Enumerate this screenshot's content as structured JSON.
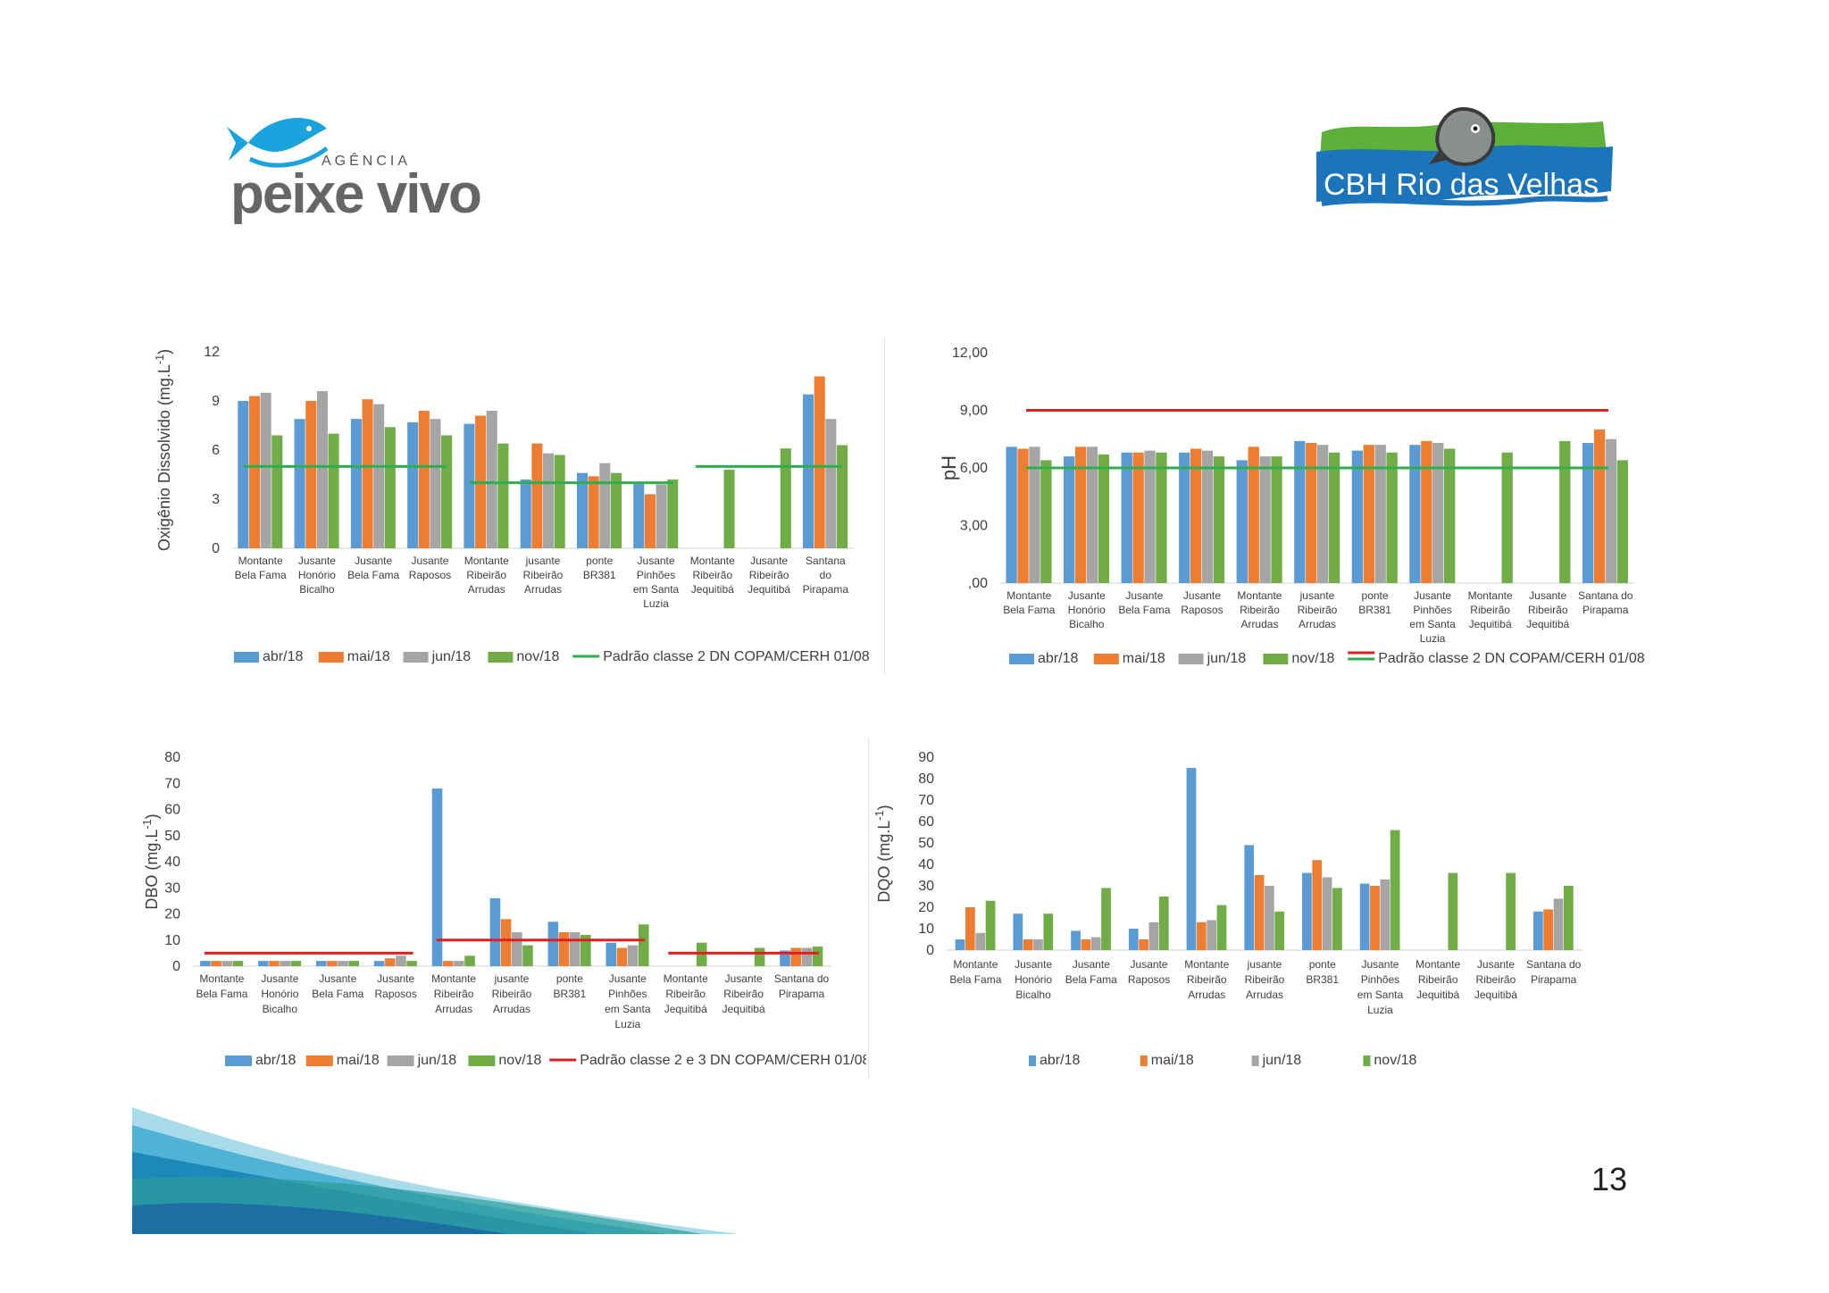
{
  "logos": {
    "left": {
      "small_text": "AGÊNCIA",
      "main_text": "peixe vivo"
    },
    "right": {
      "text": "CBH Rio das Velhas"
    }
  },
  "page_number": "13",
  "colors": {
    "abr": "#5B9BD5",
    "mai": "#ED7D31",
    "jun": "#A5A5A5",
    "nov": "#70AD47",
    "green_line": "#2EAE4E",
    "red_line": "#E02020"
  },
  "chart_data": [
    {
      "id": "od",
      "type": "bar",
      "ylabel": "Oxigênio Dissolvido (mg.L-1)",
      "ytick_labels": [
        "0",
        "3",
        "6",
        "9",
        "12"
      ],
      "ylim": [
        0,
        12
      ],
      "categories": [
        "Montante\nBela Fama",
        "Jusante\nHonório\nBicalho",
        "Jusante\nBela Fama",
        "Jusante\nRaposos",
        "Montante\nRibeirão\nArrudas",
        "jusante\nRibeirão\nArrudas",
        "ponte\nBR381",
        "Jusante\nPinhões\nem Santa\nLuzia",
        "Montante\nRibeirão\nJequitibá",
        "Jusante\nRibeirão\nJequitibá",
        "Santana\ndo\nPirapama"
      ],
      "series": [
        {
          "name": "abr/18",
          "values": [
            9.0,
            7.9,
            7.9,
            7.7,
            7.6,
            4.2,
            4.6,
            4.0,
            null,
            null,
            9.4
          ]
        },
        {
          "name": "mai/18",
          "values": [
            9.3,
            9.0,
            9.1,
            8.4,
            8.1,
            6.4,
            4.4,
            3.3,
            null,
            null,
            10.5
          ]
        },
        {
          "name": "jun/18",
          "values": [
            9.5,
            9.6,
            8.8,
            7.9,
            8.4,
            5.8,
            5.2,
            3.9,
            null,
            null,
            7.9
          ]
        },
        {
          "name": "nov/18",
          "values": [
            6.9,
            7.0,
            7.4,
            6.9,
            6.4,
            5.7,
            4.6,
            4.2,
            4.8,
            6.1,
            6.3
          ]
        }
      ],
      "standard": {
        "name": "Padrão classe 2 DN COPAM/CERH 01/08",
        "segments": [
          {
            "from": 0,
            "to": 3,
            "value": 5
          },
          {
            "from": 4,
            "to": 7,
            "value": 4
          },
          {
            "from": 8,
            "to": 10,
            "value": 5
          }
        ]
      }
    },
    {
      "id": "ph",
      "type": "bar",
      "ylabel": "pH",
      "ytick_labels": [
        ",00",
        "3,00",
        "6,00",
        "9,00",
        "12,00"
      ],
      "ylim": [
        0,
        12
      ],
      "categories": [
        "Montante\nBela Fama",
        "Jusante\nHonório\nBicalho",
        "Jusante\nBela Fama",
        "Jusante\nRaposos",
        "Montante\nRibeirão\nArrudas",
        "jusante\nRibeirão\nArrudas",
        "ponte\nBR381",
        "Jusante\nPinhões\nem Santa\nLuzia",
        "Montante\nRibeirão\nJequitibá",
        "Jusante\nRibeirão\nJequitibá",
        "Santana do\nPirapama"
      ],
      "series": [
        {
          "name": "abr/18",
          "values": [
            7.1,
            6.6,
            6.8,
            6.8,
            6.4,
            7.4,
            6.9,
            7.2,
            null,
            null,
            7.3
          ]
        },
        {
          "name": "mai/18",
          "values": [
            7.0,
            7.1,
            6.8,
            7.0,
            7.1,
            7.3,
            7.2,
            7.4,
            null,
            null,
            8.0
          ]
        },
        {
          "name": "jun/18",
          "values": [
            7.1,
            7.1,
            6.9,
            6.9,
            6.6,
            7.2,
            7.2,
            7.3,
            null,
            null,
            7.5
          ]
        },
        {
          "name": "nov/18",
          "values": [
            6.4,
            6.7,
            6.8,
            6.6,
            6.6,
            6.8,
            6.8,
            7.0,
            6.8,
            7.4,
            6.4
          ]
        }
      ],
      "standard": {
        "name": "Padrão classe 2 DN COPAM/CERH 01/08",
        "lines": [
          {
            "value": 9,
            "color": "red"
          },
          {
            "value": 6,
            "color": "green"
          }
        ]
      }
    },
    {
      "id": "dbo",
      "type": "bar",
      "ylabel": "DBO (mg.L-1)",
      "ytick_labels": [
        "0",
        "10",
        "20",
        "30",
        "40",
        "50",
        "60",
        "70",
        "80"
      ],
      "ylim": [
        0,
        80
      ],
      "categories": [
        "Montante\nBela Fama",
        "Jusante\nHonório\nBicalho",
        "Jusante\nBela Fama",
        "Jusante\nRaposos",
        "Montante\nRibeirão\nArrudas",
        "jusante\nRibeirão\nArrudas",
        "ponte\nBR381",
        "Jusante\nPinhões\nem Santa\nLuzia",
        "Montante\nRibeirão\nJequitibá",
        "Jusante\nRibeirão\nJequitibá",
        "Santana do\nPirapama"
      ],
      "series": [
        {
          "name": "abr/18",
          "values": [
            2,
            2,
            2,
            2,
            68,
            26,
            17,
            9,
            null,
            null,
            6
          ]
        },
        {
          "name": "mai/18",
          "values": [
            2,
            2,
            2,
            3,
            2,
            18,
            13,
            7,
            null,
            null,
            7
          ]
        },
        {
          "name": "jun/18",
          "values": [
            2,
            2,
            2,
            4,
            2,
            13,
            13,
            8,
            null,
            null,
            7
          ]
        },
        {
          "name": "nov/18",
          "values": [
            2,
            2,
            2,
            2,
            4,
            8,
            12,
            16,
            9,
            7,
            7.5
          ]
        }
      ],
      "standard": {
        "name": "Padrão classe 2 e 3 DN COPAM/CERH 01/08",
        "segments": [
          {
            "from": 0,
            "to": 3,
            "value": 5
          },
          {
            "from": 4,
            "to": 7,
            "value": 10
          },
          {
            "from": 8,
            "to": 10,
            "value": 5
          }
        ]
      }
    },
    {
      "id": "dqo",
      "type": "bar",
      "ylabel": "DQO (mg.L-1)",
      "ytick_labels": [
        "0",
        "10",
        "20",
        "30",
        "40",
        "50",
        "60",
        "70",
        "80",
        "90"
      ],
      "ylim": [
        0,
        90
      ],
      "categories": [
        "Montante\nBela Fama",
        "Jusante\nHonório\nBicalho",
        "Jusante\nBela Fama",
        "Jusante\nRaposos",
        "Montante\nRibeirão\nArrudas",
        "jusante\nRibeirão\nArrudas",
        "ponte\nBR381",
        "Jusante\nPinhões\nem Santa\nLuzia",
        "Montante\nRibeirão\nJequitibá",
        "Jusante\nRibeirão\nJequitibá",
        "Santana do\nPirapama"
      ],
      "series": [
        {
          "name": "abr/18",
          "values": [
            5,
            17,
            9,
            10,
            85,
            49,
            36,
            31,
            null,
            null,
            18
          ]
        },
        {
          "name": "mai/18",
          "values": [
            20,
            5,
            5,
            5,
            13,
            35,
            42,
            30,
            null,
            null,
            19
          ]
        },
        {
          "name": "jun/18",
          "values": [
            8,
            5,
            6,
            13,
            14,
            30,
            34,
            33,
            null,
            null,
            24
          ]
        },
        {
          "name": "nov/18",
          "values": [
            23,
            17,
            29,
            25,
            21,
            18,
            29,
            56,
            36,
            36,
            30
          ]
        }
      ]
    }
  ]
}
